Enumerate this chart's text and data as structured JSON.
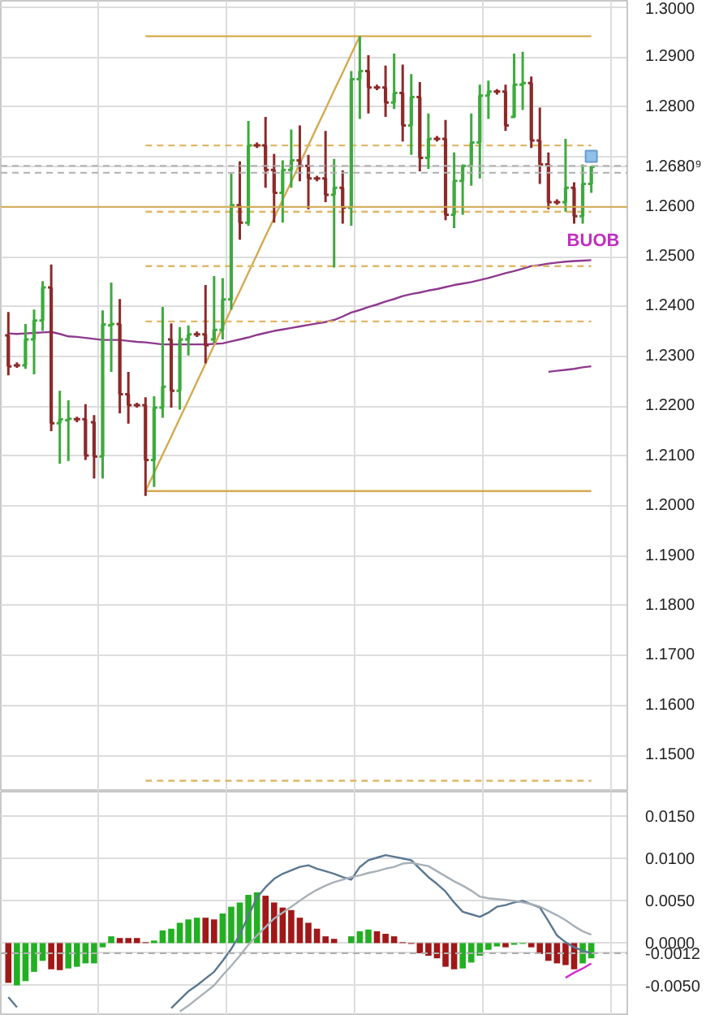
{
  "chart_data": [
    {
      "type": "candlestick",
      "categories": [
        null,
        null,
        null,
        null,
        null,
        null,
        null,
        null,
        null,
        null,
        null,
        null,
        null,
        null,
        null,
        null,
        null,
        null,
        null,
        null,
        null,
        null,
        null,
        null,
        null,
        null,
        null,
        null,
        null,
        null,
        null,
        null,
        null,
        null,
        null,
        null,
        null,
        null,
        null,
        null,
        null,
        null,
        null,
        null,
        null,
        null,
        null,
        null,
        null,
        null,
        null,
        null,
        null,
        null,
        null,
        null,
        null,
        null,
        null,
        null,
        null,
        null,
        null,
        null,
        null,
        null,
        null,
        null,
        null
      ],
      "ohlc": [
        [
          1.2342,
          1.2389,
          1.2262,
          1.228
        ],
        [
          1.2282,
          1.2288,
          1.2277,
          1.2282
        ],
        [
          1.2282,
          1.2365,
          1.2275,
          1.2334
        ],
        [
          1.2334,
          1.2394,
          1.2264,
          1.2372
        ],
        [
          1.2372,
          1.2451,
          1.2351,
          1.2438
        ],
        [
          1.2438,
          1.2484,
          1.215,
          1.2166
        ],
        [
          1.2166,
          1.2231,
          1.2085,
          1.2174
        ],
        [
          1.2172,
          1.2212,
          1.209,
          1.2175
        ],
        [
          1.2174,
          1.2179,
          1.2168,
          1.2174
        ],
        [
          1.2174,
          1.2204,
          1.2092,
          1.2101
        ],
        [
          1.2168,
          1.2182,
          1.2055,
          1.2099
        ],
        [
          1.2099,
          1.2392,
          1.2055,
          1.2364
        ],
        [
          1.2362,
          1.2448,
          1.2269,
          1.2365
        ],
        [
          1.2365,
          1.2415,
          1.2186,
          1.2224
        ],
        [
          1.2224,
          1.2269,
          1.2165,
          1.2202
        ],
        [
          1.2202,
          1.2207,
          1.2197,
          1.2202
        ],
        [
          1.2202,
          1.2218,
          1.202,
          1.2092
        ],
        [
          1.2092,
          1.222,
          1.2038,
          1.2197
        ],
        [
          1.2197,
          1.2399,
          1.2177,
          1.2239
        ],
        [
          1.2334,
          1.2366,
          1.2197,
          1.2231
        ],
        [
          1.2231,
          1.2359,
          1.2193,
          1.2334
        ],
        [
          1.2334,
          1.2362,
          1.2302,
          1.2344
        ],
        [
          1.2344,
          1.235,
          1.2339,
          1.2344
        ],
        [
          1.2344,
          1.2443,
          1.2286,
          1.2322
        ],
        [
          1.2334,
          1.2461,
          1.2327,
          1.2353
        ],
        [
          1.2353,
          1.2457,
          1.2334,
          1.2414
        ],
        [
          1.2414,
          1.2666,
          1.2394,
          1.2603
        ],
        [
          1.2603,
          1.2691,
          1.2534,
          1.2568
        ],
        [
          1.2568,
          1.2772,
          1.2562,
          1.2723
        ],
        [
          1.2723,
          1.2729,
          1.2718,
          1.2723
        ],
        [
          1.2723,
          1.278,
          1.2638,
          1.2674
        ],
        [
          1.2674,
          1.2706,
          1.2568,
          1.2628
        ],
        [
          1.2628,
          1.2693,
          1.2568,
          1.2674
        ],
        [
          1.2674,
          1.2755,
          1.2638,
          1.2693
        ],
        [
          1.2693,
          1.2763,
          1.2651,
          1.2682
        ],
        [
          1.2682,
          1.2704,
          1.2595,
          1.2657
        ],
        [
          1.2657,
          1.2662,
          1.2651,
          1.2657
        ],
        [
          1.2657,
          1.2752,
          1.2609,
          1.2624
        ],
        [
          1.2624,
          1.2696,
          1.2478,
          1.2638
        ],
        [
          1.2638,
          1.2673,
          1.2566,
          1.2598
        ],
        [
          1.2598,
          1.2872,
          1.2562,
          1.2856
        ],
        [
          1.2856,
          1.2942,
          1.2776,
          1.2872
        ],
        [
          1.2872,
          1.2904,
          1.2787,
          1.2839
        ],
        [
          1.2839,
          1.2845,
          1.2834,
          1.2839
        ],
        [
          1.2839,
          1.2883,
          1.278,
          1.2809
        ],
        [
          1.2809,
          1.2907,
          1.2796,
          1.2828
        ],
        [
          1.2828,
          1.2885,
          1.2731,
          1.2763
        ],
        [
          1.2763,
          1.2866,
          1.2704,
          1.282
        ],
        [
          1.282,
          1.285,
          1.2671,
          1.2698
        ],
        [
          1.2698,
          1.2787,
          1.2676,
          1.2736
        ],
        [
          1.2736,
          1.2742,
          1.2731,
          1.2736
        ],
        [
          1.2736,
          1.2774,
          1.2573,
          1.2584
        ],
        [
          1.2584,
          1.2709,
          1.2557,
          1.2652
        ],
        [
          1.2652,
          1.2685,
          1.2584,
          1.2682
        ],
        [
          1.2682,
          1.2787,
          1.2642,
          1.2729
        ],
        [
          1.2729,
          1.2845,
          1.2657,
          1.2823
        ],
        [
          1.2823,
          1.2853,
          1.2776,
          1.2831
        ],
        [
          1.2831,
          1.2836,
          1.2825,
          1.2831
        ],
        [
          1.2831,
          1.2845,
          1.2752,
          1.2763
        ],
        [
          1.278,
          1.2907,
          1.278,
          1.2845
        ],
        [
          1.2845,
          1.2911,
          1.2794,
          1.2848
        ],
        [
          1.2848,
          1.2861,
          1.2718,
          1.2733
        ],
        [
          1.2733,
          1.2799,
          1.2646,
          1.2685
        ],
        [
          1.2685,
          1.2709,
          1.2595,
          1.2609
        ],
        [
          1.2609,
          1.2615,
          1.2604,
          1.2609
        ],
        [
          1.2609,
          1.2736,
          1.259,
          1.2638
        ],
        [
          1.2638,
          1.2649,
          1.2566,
          1.2581
        ],
        [
          1.2581,
          1.2685,
          1.2566,
          1.2646
        ],
        [
          1.2646,
          1.2682,
          1.2628,
          1.268
        ]
      ],
      "colors": [
        "#8c2a2a",
        "#8c2a2a",
        "#3daa3d",
        "#3daa3d",
        "#3daa3d",
        "#8c2a2a",
        "#3daa3d",
        "#3daa3d",
        "#8c2a2a",
        "#8c2a2a",
        "#8c2a2a",
        "#3daa3d",
        "#3daa3d",
        "#8c2a2a",
        "#8c2a2a",
        "#8c2a2a",
        "#8c2a2a",
        "#3daa3d",
        "#3daa3d",
        "#8c2a2a",
        "#3daa3d",
        "#3daa3d",
        "#8c2a2a",
        "#8c2a2a",
        "#3daa3d",
        "#3daa3d",
        "#3daa3d",
        "#8c2a2a",
        "#3daa3d",
        "#8c2a2a",
        "#8c2a2a",
        "#8c2a2a",
        "#3daa3d",
        "#3daa3d",
        "#8c2a2a",
        "#8c2a2a",
        "#8c2a2a",
        "#8c2a2a",
        "#3daa3d",
        "#8c2a2a",
        "#3daa3d",
        "#3daa3d",
        "#8c2a2a",
        "#8c2a2a",
        "#8c2a2a",
        "#3daa3d",
        "#8c2a2a",
        "#3daa3d",
        "#8c2a2a",
        "#3daa3d",
        "#8c2a2a",
        "#8c2a2a",
        "#3daa3d",
        "#3daa3d",
        "#3daa3d",
        "#3daa3d",
        "#3daa3d",
        "#8c2a2a",
        "#8c2a2a",
        "#3daa3d",
        "#3daa3d",
        "#8c2a2a",
        "#8c2a2a",
        "#8c2a2a",
        "#8c2a2a",
        "#3daa3d",
        "#8c2a2a",
        "#3daa3d",
        "#3daa3d"
      ],
      "series": [
        {
          "type": "line",
          "color": "#8e3a8e",
          "values": [
            1.2346,
            1.2345,
            1.2346,
            1.2347,
            1.2348,
            1.2349,
            1.2345,
            1.234,
            1.2339,
            1.2337,
            1.2335,
            1.2333,
            1.2333,
            1.2333,
            1.2331,
            1.2329,
            1.2328,
            1.2326,
            1.2324,
            1.2324,
            1.2324,
            1.2324,
            1.2324,
            1.2324,
            1.2325,
            1.2326,
            1.233,
            1.2334,
            1.2338,
            1.2343,
            1.2347,
            1.2351,
            1.2354,
            1.2357,
            1.236,
            1.2363,
            1.2366,
            1.2369,
            1.2373,
            1.238,
            1.2388,
            1.2393,
            1.2399,
            1.2404,
            1.241,
            1.2415,
            1.2421,
            1.2425,
            1.2428,
            1.2432,
            1.2435,
            1.2439,
            1.2443,
            1.2446,
            1.2449,
            1.2453,
            1.2457,
            1.2462,
            1.2467,
            1.2471,
            1.2476,
            1.2481,
            1.2483,
            1.2486,
            1.2488,
            1.249,
            1.2491,
            1.2492,
            1.2493
          ]
        },
        {
          "type": "line",
          "color": "#8e3a8e",
          "values": [
            null,
            null,
            null,
            null,
            null,
            null,
            null,
            null,
            null,
            null,
            null,
            null,
            null,
            null,
            null,
            null,
            null,
            null,
            null,
            null,
            null,
            null,
            null,
            null,
            null,
            null,
            null,
            null,
            null,
            null,
            null,
            null,
            null,
            null,
            null,
            null,
            null,
            null,
            null,
            null,
            null,
            null,
            null,
            null,
            null,
            null,
            null,
            null,
            null,
            null,
            null,
            null,
            null,
            null,
            null,
            null,
            null,
            null,
            null,
            null,
            null,
            null,
            null,
            1.2269,
            1.2271,
            1.2273,
            1.2275,
            1.2278,
            1.228
          ]
        },
        {
          "type": "line",
          "color": "#d4aa50",
          "values": [
            null,
            null,
            null,
            null,
            null,
            null,
            null,
            null,
            null,
            null,
            null,
            null,
            null,
            null,
            null,
            null,
            1.203,
            1.2066,
            1.2103,
            1.2139,
            1.2176,
            1.2212,
            1.2249,
            1.2285,
            1.2322,
            1.2358,
            1.2395,
            1.2431,
            1.2468,
            1.2504,
            1.2541,
            1.2577,
            1.2614,
            1.265,
            1.2687,
            1.2723,
            1.276,
            1.2796,
            1.2833,
            1.2869,
            1.2906,
            1.2942,
            null,
            null,
            null,
            null,
            null,
            null,
            null,
            null,
            null,
            null,
            null,
            null,
            null,
            null,
            null,
            null,
            null,
            null,
            null,
            null,
            null,
            null,
            null,
            null,
            null,
            null,
            null
          ]
        },
        {
          "type": "line",
          "color": "#d4aa50",
          "values": [
            null,
            null,
            null,
            null,
            null,
            null,
            null,
            null,
            null,
            null,
            null,
            null,
            null,
            null,
            null,
            null,
            1.2942,
            1.2942,
            1.2942,
            1.2942,
            1.2942,
            1.2942,
            1.2942,
            1.2942,
            1.2942,
            1.2942,
            1.2942,
            1.2942,
            1.2942,
            1.2942,
            1.2942,
            1.2942,
            1.2942,
            1.2942,
            1.2942,
            1.2942,
            1.2942,
            1.2942,
            1.2942,
            1.2942,
            1.2942,
            1.2942,
            1.2942,
            1.2942,
            1.2942,
            1.2942,
            1.2942,
            1.2942,
            1.2942,
            1.2942,
            1.2942,
            1.2942,
            1.2942,
            1.2942,
            1.2942,
            1.2942,
            1.2942,
            1.2942,
            1.2942,
            1.2942,
            1.2942,
            1.2942,
            1.2942,
            1.2942,
            1.2942,
            1.2942,
            1.2942,
            1.2942,
            1.2942
          ]
        },
        {
          "type": "line",
          "color": "#d4aa50",
          "values": [
            null,
            null,
            null,
            null,
            null,
            null,
            null,
            null,
            null,
            null,
            null,
            null,
            null,
            null,
            null,
            null,
            1.203,
            1.203,
            1.203,
            1.203,
            1.203,
            1.203,
            1.203,
            1.203,
            1.203,
            1.203,
            1.203,
            1.203,
            1.203,
            1.203,
            1.203,
            1.203,
            1.203,
            1.203,
            1.203,
            1.203,
            1.203,
            1.203,
            1.203,
            1.203,
            1.203,
            1.203,
            1.203,
            1.203,
            1.203,
            1.203,
            1.203,
            1.203,
            1.203,
            1.203,
            1.203,
            1.203,
            1.203,
            1.203,
            1.203,
            1.203,
            1.203,
            1.203,
            1.203,
            1.203,
            1.203,
            1.203,
            1.203,
            1.203,
            1.203,
            1.203,
            1.203,
            1.203,
            1.203
          ]
        },
        {
          "type": "line",
          "color": "#e0b868",
          "line_style": "dashed",
          "values": [
            null,
            null,
            null,
            null,
            null,
            null,
            null,
            null,
            null,
            null,
            null,
            null,
            null,
            null,
            null,
            null,
            1.2723,
            1.2723,
            1.2723,
            1.2723,
            1.2723,
            1.2723,
            1.2723,
            1.2723,
            1.2723,
            1.2723,
            1.2723,
            1.2723,
            1.2723,
            1.2723,
            1.2723,
            1.2723,
            1.2723,
            1.2723,
            1.2723,
            1.2723,
            1.2723,
            1.2723,
            1.2723,
            1.2723,
            1.2723,
            1.2723,
            1.2723,
            1.2723,
            1.2723,
            1.2723,
            1.2723,
            1.2723,
            1.2723,
            1.2723,
            1.2723,
            1.2723,
            1.2723,
            1.2723,
            1.2723,
            1.2723,
            1.2723,
            1.2723,
            1.2723,
            1.2723,
            1.2723,
            1.2723,
            1.2723,
            1.2723,
            1.2723,
            1.2723,
            1.2723,
            1.2723,
            1.2723
          ]
        },
        {
          "type": "line",
          "color": "#e0b868",
          "line_style": "dashed",
          "values": [
            null,
            null,
            null,
            null,
            null,
            null,
            null,
            null,
            null,
            null,
            null,
            null,
            null,
            null,
            null,
            null,
            1.259,
            1.259,
            1.259,
            1.259,
            1.259,
            1.259,
            1.259,
            1.259,
            1.259,
            1.259,
            1.259,
            1.259,
            1.259,
            1.259,
            1.259,
            1.259,
            1.259,
            1.259,
            1.259,
            1.259,
            1.259,
            1.259,
            1.259,
            1.259,
            1.259,
            1.259,
            1.259,
            1.259,
            1.259,
            1.259,
            1.259,
            1.259,
            1.259,
            1.259,
            1.259,
            1.259,
            1.259,
            1.259,
            1.259,
            1.259,
            1.259,
            1.259,
            1.259,
            1.259,
            1.259,
            1.259,
            1.259,
            1.259,
            1.259,
            1.259,
            1.259,
            1.259,
            1.259
          ]
        },
        {
          "type": "line",
          "color": "#e0b868",
          "line_style": "dashed",
          "values": [
            null,
            null,
            null,
            null,
            null,
            null,
            null,
            null,
            null,
            null,
            null,
            null,
            null,
            null,
            null,
            null,
            1.2481,
            1.2481,
            1.2481,
            1.2481,
            1.2481,
            1.2481,
            1.2481,
            1.2481,
            1.2481,
            1.2481,
            1.2481,
            1.2481,
            1.2481,
            1.2481,
            1.2481,
            1.2481,
            1.2481,
            1.2481,
            1.2481,
            1.2481,
            1.2481,
            1.2481,
            1.2481,
            1.2481,
            1.2481,
            1.2481,
            1.2481,
            1.2481,
            1.2481,
            1.2481,
            1.2481,
            1.2481,
            1.2481,
            1.2481,
            1.2481,
            1.2481,
            1.2481,
            1.2481,
            1.2481,
            1.2481,
            1.2481,
            1.2481,
            1.2481,
            1.2481,
            1.2481,
            1.2481,
            1.2481,
            1.2481,
            1.2481,
            1.2481,
            1.2481,
            1.2481,
            1.2481
          ]
        },
        {
          "type": "line",
          "color": "#e0b868",
          "line_style": "dashed",
          "values": [
            null,
            null,
            null,
            null,
            null,
            null,
            null,
            null,
            null,
            null,
            null,
            null,
            null,
            null,
            null,
            null,
            1.237,
            1.237,
            1.237,
            1.237,
            1.237,
            1.237,
            1.237,
            1.237,
            1.237,
            1.237,
            1.237,
            1.237,
            1.237,
            1.237,
            1.237,
            1.237,
            1.237,
            1.237,
            1.237,
            1.237,
            1.237,
            1.237,
            1.237,
            1.237,
            1.237,
            1.237,
            1.237,
            1.237,
            1.237,
            1.237,
            1.237,
            1.237,
            1.237,
            1.237,
            1.237,
            1.237,
            1.237,
            1.237,
            1.237,
            1.237,
            1.237,
            1.237,
            1.237,
            1.237,
            1.237,
            1.237,
            1.237,
            1.237,
            1.237,
            1.237,
            1.237,
            1.237,
            1.237
          ]
        },
        {
          "type": "line",
          "color": "#e0b868",
          "line_style": "dashed",
          "values": [
            null,
            null,
            null,
            null,
            null,
            null,
            null,
            null,
            null,
            null,
            null,
            null,
            null,
            null,
            null,
            null,
            1.1449,
            1.1449,
            1.1449,
            1.1449,
            1.1449,
            1.1449,
            1.1449,
            1.1449,
            1.1449,
            1.1449,
            1.1449,
            1.1449,
            1.1449,
            1.1449,
            1.1449,
            1.1449,
            1.1449,
            1.1449,
            1.1449,
            1.1449,
            1.1449,
            1.1449,
            1.1449,
            1.1449,
            1.1449,
            1.1449,
            1.1449,
            1.1449,
            1.1449,
            1.1449,
            1.1449,
            1.1449,
            1.1449,
            1.1449,
            1.1449,
            1.1449,
            1.1449,
            1.1449,
            1.1449,
            1.1449,
            1.1449,
            1.1449,
            1.1449,
            1.1449,
            1.1449,
            1.1449,
            1.1449,
            1.1449,
            1.1449,
            1.1449,
            1.1449,
            1.1449,
            1.1449
          ]
        },
        {
          "type": "scatter",
          "marker": "square",
          "color": "#8ec0ea",
          "values": [
            null,
            null,
            null,
            null,
            null,
            null,
            null,
            null,
            null,
            null,
            null,
            null,
            null,
            null,
            null,
            null,
            null,
            null,
            null,
            null,
            null,
            null,
            null,
            null,
            null,
            null,
            null,
            null,
            null,
            null,
            null,
            null,
            null,
            null,
            null,
            null,
            null,
            null,
            null,
            null,
            null,
            null,
            null,
            null,
            null,
            null,
            null,
            null,
            null,
            null,
            null,
            null,
            null,
            null,
            null,
            null,
            null,
            null,
            null,
            null,
            null,
            null,
            null,
            null,
            null,
            null,
            null,
            null,
            1.2701
          ]
        }
      ],
      "ref_lines": [
        {
          "axis": "y",
          "value": 1.26,
          "color": "#d4aa50",
          "line_style": "solid"
        },
        {
          "axis": "y",
          "value": 1.2682,
          "color": "#b0b0b0",
          "line_style": "dashed"
        },
        {
          "axis": "y",
          "value": 1.2668,
          "color": "#b0b0b0",
          "line_style": "dashed"
        }
      ],
      "annotations": [
        "BUOB"
      ],
      "ylim": [
        1.1427,
        1.3013
      ],
      "yticks": [
        {
          "value": 1.15,
          "label": "1.1500"
        },
        {
          "value": 1.16,
          "label": "1.1600"
        },
        {
          "value": 1.17,
          "label": "1.1700"
        },
        {
          "value": 1.18,
          "label": "1.1800"
        },
        {
          "value": 1.19,
          "label": "1.1900"
        },
        {
          "value": 1.2,
          "label": "1.2000"
        },
        {
          "value": 1.21,
          "label": "1.2100"
        },
        {
          "value": 1.22,
          "label": "1.2200"
        },
        {
          "value": 1.23,
          "label": "1.2300"
        },
        {
          "value": 1.24,
          "label": "1.2400"
        },
        {
          "value": 1.25,
          "label": "1.2500"
        },
        {
          "value": 1.26,
          "label": "1.2600"
        },
        {
          "value": 1.268,
          "label": "1.2680⁹"
        },
        {
          "value": 1.27,
          "label": null
        },
        {
          "value": 1.28,
          "label": "1.2800"
        },
        {
          "value": 1.29,
          "label": "1.2900"
        },
        {
          "value": 1.3,
          "label": "1.3000"
        }
      ],
      "tick_labels": "y",
      "grid": true
    },
    {
      "type": "bar",
      "categories": [
        null,
        null,
        null,
        null,
        null,
        null,
        null,
        null,
        null,
        null,
        null,
        null,
        null,
        null,
        null,
        null,
        null,
        null,
        null,
        null,
        null,
        null,
        null,
        null,
        null,
        null,
        null,
        null,
        null,
        null,
        null,
        null,
        null,
        null,
        null,
        null,
        null,
        null,
        null,
        null,
        null,
        null,
        null,
        null,
        null,
        null,
        null,
        null,
        null,
        null,
        null,
        null,
        null,
        null,
        null,
        null,
        null,
        null,
        null,
        null,
        null,
        null,
        null,
        null,
        null,
        null,
        null,
        null,
        null
      ],
      "series": [
        {
          "type": "bar",
          "values": [
            -0.0047,
            -0.005,
            -0.0045,
            -0.0034,
            -0.0021,
            -0.0031,
            -0.0032,
            -0.003,
            -0.0028,
            -0.0024,
            -0.0024,
            -0.0005,
            0.0008,
            0.0006,
            0.0006,
            0.0006,
            0.0001,
            0.0003,
            0.0015,
            0.0017,
            0.0024,
            0.0028,
            0.003,
            0.003,
            0.0028,
            0.0035,
            0.0043,
            0.0048,
            0.0057,
            0.006,
            0.0056,
            0.0048,
            0.0042,
            0.0039,
            0.003,
            0.0024,
            0.0017,
            0.0008,
            0.0005,
            0.0,
            0.0008,
            0.0014,
            0.0016,
            0.0014,
            0.0011,
            0.0008,
            0.0001,
            -0.0001,
            -0.0012,
            -0.0015,
            -0.0018,
            -0.0028,
            -0.0031,
            -0.003,
            -0.0023,
            -0.0015,
            -0.0008,
            -0.0004,
            -0.0005,
            -0.0002,
            -0.0001,
            -0.0005,
            -0.0013,
            -0.0021,
            -0.0024,
            -0.0026,
            -0.0031,
            -0.0024,
            -0.0018
          ],
          "colors": [
            "#a01818",
            "#22b022",
            "#22b022",
            "#22b022",
            "#22b022",
            "#a01818",
            "#a01818",
            "#22b022",
            "#22b022",
            "#22b022",
            "#22b022",
            "#22b022",
            "#22b022",
            "#a01818",
            "#a01818",
            "#a01818",
            "#a01818",
            "#22b022",
            "#22b022",
            "#22b022",
            "#22b022",
            "#22b022",
            "#22b022",
            "#a01818",
            "#a01818",
            "#22b022",
            "#22b022",
            "#22b022",
            "#22b022",
            "#22b022",
            "#a01818",
            "#a01818",
            "#a01818",
            "#a01818",
            "#a01818",
            "#a01818",
            "#a01818",
            "#a01818",
            "#a01818",
            "#a01818",
            "#22b022",
            "#22b022",
            "#22b022",
            "#a01818",
            "#a01818",
            "#a01818",
            "#a01818",
            "#a01818",
            "#a01818",
            "#a01818",
            "#a01818",
            "#a01818",
            "#a01818",
            "#22b022",
            "#22b022",
            "#22b022",
            "#22b022",
            "#22b022",
            "#a01818",
            "#22b022",
            "#22b022",
            "#a01818",
            "#a01818",
            "#a01818",
            "#a01818",
            "#a01818",
            "#a01818",
            "#22b022",
            "#22b022"
          ]
        },
        {
          "type": "line",
          "color": "#5a7890",
          "values": [
            -0.0064,
            -0.0076,
            null,
            null,
            null,
            null,
            null,
            null,
            null,
            null,
            null,
            null,
            null,
            null,
            null,
            null,
            null,
            null,
            null,
            -0.0077,
            -0.0067,
            -0.0057,
            -0.005,
            -0.0042,
            -0.0034,
            -0.0021,
            -0.0007,
            0.001,
            0.0032,
            0.0054,
            0.0066,
            0.0076,
            0.0082,
            0.0086,
            0.009,
            0.0092,
            0.0088,
            0.0085,
            0.0082,
            0.0078,
            0.0075,
            0.009,
            0.0098,
            0.0101,
            0.0104,
            0.0102,
            0.01,
            0.0098,
            0.0088,
            0.0078,
            0.007,
            0.0061,
            0.0048,
            0.0037,
            0.0034,
            0.0031,
            0.0036,
            0.0043,
            0.0045,
            0.0048,
            0.005,
            0.0046,
            0.0042,
            0.0026,
            0.0009,
            0.0001,
            -0.0005,
            -0.0009,
            -0.0012
          ]
        },
        {
          "type": "line",
          "color": "#a8b0b8",
          "values": [
            null,
            null,
            null,
            null,
            null,
            null,
            null,
            null,
            null,
            null,
            null,
            null,
            null,
            null,
            null,
            null,
            null,
            null,
            null,
            null,
            -0.0081,
            -0.0074,
            -0.0066,
            -0.0058,
            -0.005,
            -0.0038,
            -0.0027,
            -0.0015,
            -0.0002,
            0.0009,
            0.0019,
            0.0029,
            0.0036,
            0.0043,
            0.005,
            0.0057,
            0.0063,
            0.0068,
            0.0072,
            0.0075,
            0.0078,
            0.008,
            0.0083,
            0.0085,
            0.0088,
            0.009,
            0.0094,
            0.0095,
            0.0093,
            0.0091,
            0.0085,
            0.0079,
            0.0073,
            0.0068,
            0.0062,
            0.0055,
            0.0053,
            0.0052,
            0.0051,
            0.005,
            0.0048,
            0.0046,
            0.0043,
            0.0038,
            0.0033,
            0.0027,
            0.002,
            0.0014,
            0.001
          ]
        },
        {
          "type": "line",
          "color": "#d030d0",
          "values": [
            null,
            null,
            null,
            null,
            null,
            null,
            null,
            null,
            null,
            null,
            null,
            null,
            null,
            null,
            null,
            null,
            null,
            null,
            null,
            null,
            null,
            null,
            null,
            null,
            null,
            null,
            null,
            null,
            null,
            null,
            null,
            null,
            null,
            null,
            null,
            null,
            null,
            null,
            null,
            null,
            null,
            null,
            null,
            null,
            null,
            null,
            null,
            null,
            null,
            null,
            null,
            null,
            null,
            null,
            null,
            null,
            null,
            null,
            null,
            null,
            null,
            null,
            null,
            null,
            null,
            -0.0041,
            -0.0035,
            -0.003,
            -0.0024
          ]
        }
      ],
      "ref_lines": [
        {
          "axis": "y",
          "value": -0.0012,
          "color": "#b0b0b0",
          "line_style": "dashed"
        }
      ],
      "ylim": [
        -0.0086,
        0.0179
      ],
      "yticks": [
        {
          "value": -0.005,
          "label": "-0.0050"
        },
        {
          "value": -0.0012,
          "label": "-0.0012"
        },
        {
          "value": 0.0,
          "label": "0.0000"
        },
        {
          "value": 0.005,
          "label": "0.0050"
        },
        {
          "value": 0.01,
          "label": "0.0100"
        },
        {
          "value": 0.015,
          "label": "0.0150"
        }
      ],
      "tick_labels": "y",
      "grid": true
    }
  ]
}
